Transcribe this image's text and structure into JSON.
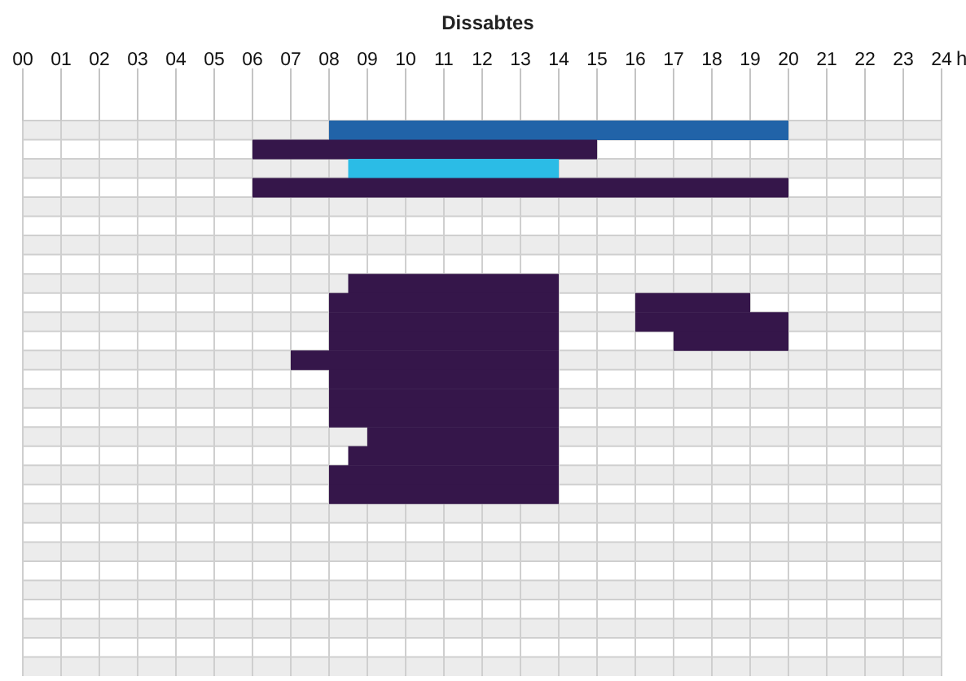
{
  "chart_data": {
    "type": "bar",
    "orientation": "horizontal",
    "title": "Dissabtes",
    "xlabel": "h",
    "categories": [
      null,
      null,
      null,
      null,
      null,
      null,
      null,
      null,
      null,
      null,
      null,
      null,
      null,
      null,
      null,
      null,
      null,
      null,
      null,
      null,
      null,
      null,
      null,
      null,
      null,
      null,
      null,
      null,
      null
    ],
    "series": [
      {
        "base": [
          8,
          6,
          8.5,
          6,
          null,
          null,
          null,
          null,
          8.5,
          8,
          8,
          8,
          7,
          8,
          8,
          8,
          9,
          8.5,
          8,
          8,
          null,
          null,
          null,
          null,
          null,
          null,
          null,
          null,
          null
        ],
        "values": [
          12,
          9,
          5.5,
          14,
          null,
          null,
          null,
          null,
          5.5,
          6,
          6,
          6,
          7,
          6,
          6,
          6,
          5,
          5.5,
          6,
          6,
          null,
          null,
          null,
          null,
          null,
          null,
          null,
          null,
          null
        ],
        "colors": [
          "#2163a8",
          "#35164a",
          "#2bbce6",
          "#35164a",
          null,
          null,
          null,
          null,
          "#35164a",
          "#35164a",
          "#35164a",
          "#35164a",
          "#35164a",
          "#35164a",
          "#35164a",
          "#35164a",
          "#35164a",
          "#35164a",
          "#35164a",
          "#35164a",
          null,
          null,
          null,
          null,
          null,
          null,
          null,
          null,
          null
        ]
      },
      {
        "color": "#35164a",
        "base": [
          null,
          null,
          null,
          null,
          null,
          null,
          null,
          null,
          null,
          16,
          16,
          17,
          null,
          null,
          null,
          null,
          null,
          null,
          null,
          null,
          null,
          null,
          null,
          null,
          null,
          null,
          null,
          null,
          null
        ],
        "values": [
          null,
          null,
          null,
          null,
          null,
          null,
          null,
          null,
          null,
          3,
          4,
          3,
          null,
          null,
          null,
          null,
          null,
          null,
          null,
          null,
          null,
          null,
          null,
          null,
          null,
          null,
          null,
          null,
          null
        ]
      }
    ],
    "xlim": [
      0,
      24
    ],
    "xticks": [
      {
        "value": 0,
        "label": "00"
      },
      {
        "value": 1,
        "label": "01"
      },
      {
        "value": 2,
        "label": "02"
      },
      {
        "value": 3,
        "label": "03"
      },
      {
        "value": 4,
        "label": "04"
      },
      {
        "value": 5,
        "label": "05"
      },
      {
        "value": 6,
        "label": "06"
      },
      {
        "value": 7,
        "label": "07"
      },
      {
        "value": 8,
        "label": "08"
      },
      {
        "value": 9,
        "label": "09"
      },
      10,
      11,
      12,
      13,
      14,
      15,
      16,
      17,
      18,
      19,
      20,
      21,
      22,
      23,
      24
    ],
    "tick_labels": "x",
    "grid": true
  }
}
